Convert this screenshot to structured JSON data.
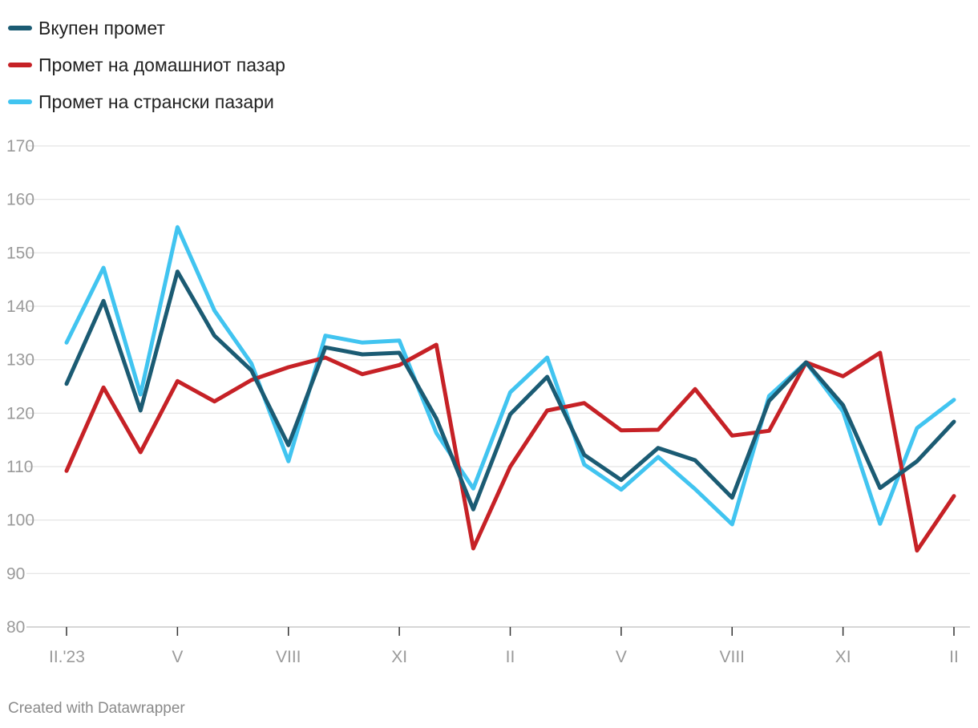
{
  "chart_data": {
    "type": "line",
    "title": "",
    "xlabel": "",
    "ylabel": "",
    "ylim": [
      80,
      170
    ],
    "yticks": [
      80,
      90,
      100,
      110,
      120,
      130,
      140,
      150,
      160,
      170
    ],
    "x_tick_labels": [
      {
        "index": 0,
        "label": "II.'23"
      },
      {
        "index": 3,
        "label": "V"
      },
      {
        "index": 6,
        "label": "VIII"
      },
      {
        "index": 9,
        "label": "XI"
      },
      {
        "index": 12,
        "label": "II"
      },
      {
        "index": 15,
        "label": "V"
      },
      {
        "index": 18,
        "label": "VIII"
      },
      {
        "index": 21,
        "label": "XI"
      },
      {
        "index": 24,
        "label": "II"
      }
    ],
    "point_count": 25,
    "grid": true,
    "legend_position": "top-left",
    "series": [
      {
        "name": "Вкупен промет",
        "color": "#1b5b73",
        "values": [
          125.5,
          141,
          120.5,
          146.5,
          134.5,
          128,
          114,
          132.3,
          131,
          131.3,
          119,
          102,
          119.8,
          126.8,
          112.2,
          107.5,
          113.5,
          111.2,
          104.2,
          122.3,
          129.5,
          121.5,
          106,
          111,
          118.4
        ]
      },
      {
        "name": "Промет на домашниот пазар",
        "color": "#c62126",
        "values": [
          109.2,
          124.8,
          112.7,
          126,
          122.2,
          126.2,
          128.6,
          130.4,
          127.3,
          129,
          132.8,
          94.7,
          110,
          120.5,
          121.9,
          116.8,
          116.9,
          124.5,
          115.8,
          116.7,
          129.5,
          126.9,
          131.3,
          94.3,
          104.5
        ]
      },
      {
        "name": "Промет на странски пазари",
        "color": "#41c4f0",
        "values": [
          133.2,
          147.2,
          123.5,
          154.8,
          139.2,
          129.3,
          111,
          134.5,
          133.2,
          133.6,
          116.3,
          105.9,
          123.9,
          130.4,
          110.4,
          105.7,
          111.8,
          105.8,
          99.2,
          123.2,
          129.5,
          120.3,
          99.3,
          117.2,
          122.5
        ]
      }
    ]
  },
  "footer": {
    "credit": "Created with Datawrapper"
  }
}
